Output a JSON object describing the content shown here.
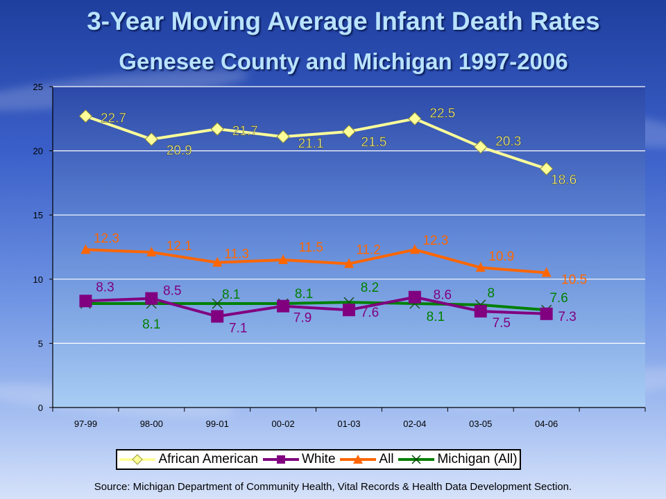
{
  "title": "3-Year Moving Average Infant Death Rates",
  "subtitle": "Genesee County and Michigan 1997-2006",
  "source": "Source: Michigan Department of Community Health, Vital Records & Health Data Development Section.",
  "chart_data": {
    "type": "line",
    "categories": [
      "97-99",
      "98-00",
      "99-01",
      "00-02",
      "01-03",
      "02-04",
      "03-05",
      "04-06"
    ],
    "ylim": [
      0,
      25
    ],
    "yticks": [
      0,
      5,
      10,
      15,
      20,
      25
    ],
    "grid": true,
    "legend_position": "bottom",
    "series": [
      {
        "name": "African American",
        "values": [
          22.7,
          20.9,
          21.7,
          21.1,
          21.5,
          22.5,
          20.3,
          18.6
        ],
        "color": "#ffff99",
        "marker": "diamond",
        "labels": [
          "22.7",
          "20.9",
          "21.7",
          "21.1",
          "21.5",
          "22.5",
          "20.3",
          "18.6"
        ]
      },
      {
        "name": "White",
        "values": [
          8.3,
          8.5,
          7.1,
          7.9,
          7.6,
          8.6,
          7.5,
          7.3
        ],
        "color": "#800080",
        "marker": "square",
        "labels": [
          "8.3",
          "8.5",
          "7.1",
          "7.9",
          "7.6",
          "8.6",
          "7.5",
          "7.3"
        ]
      },
      {
        "name": "All",
        "values": [
          12.3,
          12.1,
          11.3,
          11.5,
          11.2,
          12.3,
          10.9,
          10.5
        ],
        "color": "#ff6600",
        "marker": "triangle",
        "labels": [
          "12.3",
          "12.1",
          "11.3",
          "11.5",
          "11.2",
          "12.3",
          "10.9",
          "10.5"
        ]
      },
      {
        "name": "Michigan (All)",
        "values": [
          8.1,
          8.1,
          8.1,
          8.1,
          8.2,
          8.1,
          8,
          7.6
        ],
        "color": "#008000",
        "marker": "x",
        "labels": [
          "",
          "8.1",
          "8.1",
          "8.1",
          "8.2",
          "8.1",
          "8",
          "7.6"
        ]
      }
    ]
  }
}
